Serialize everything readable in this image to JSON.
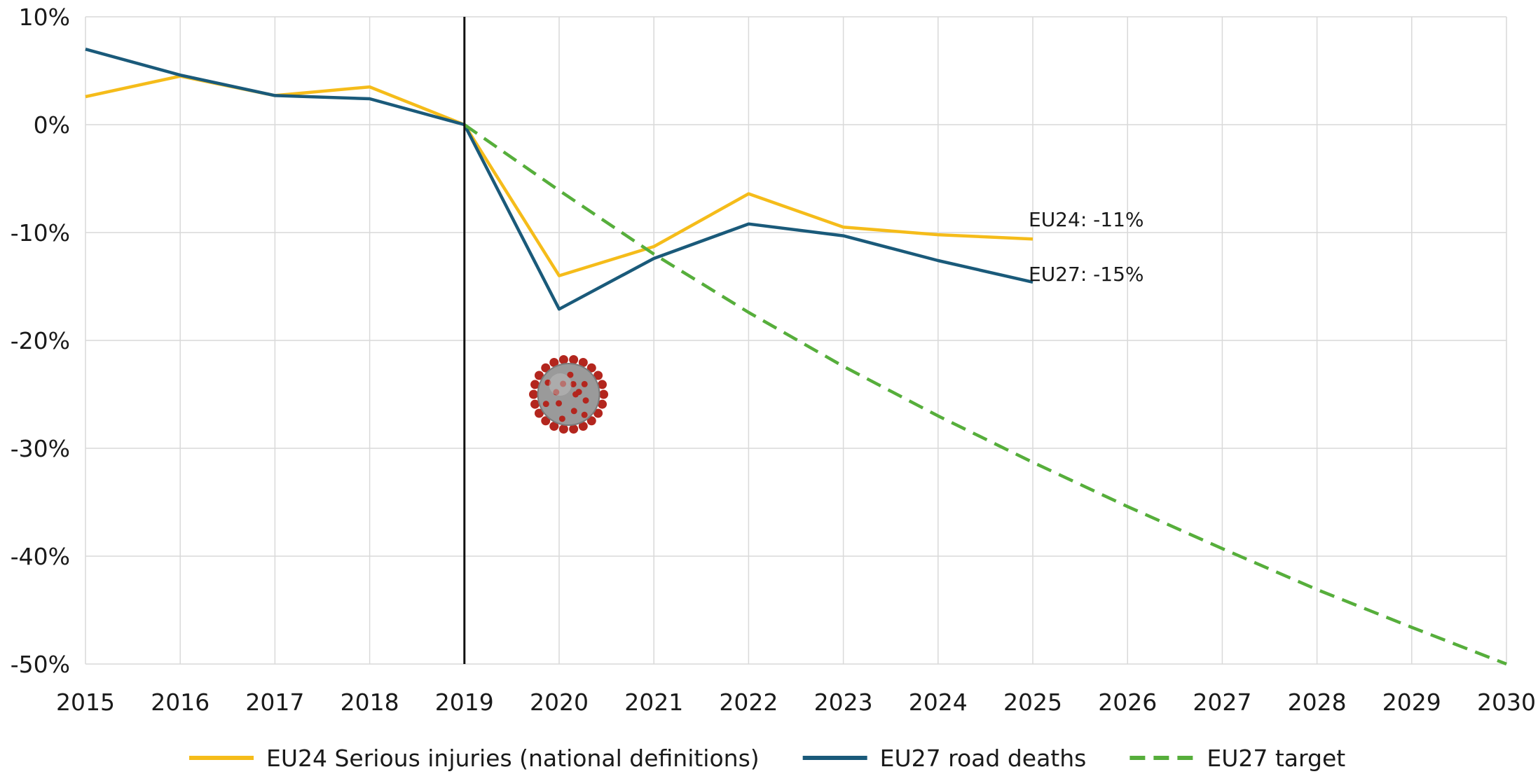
{
  "chart_data": {
    "type": "line",
    "title": "",
    "xlabel": "",
    "ylabel": "",
    "x": [
      2015,
      2016,
      2017,
      2018,
      2019,
      2020,
      2021,
      2022,
      2023,
      2024,
      2025,
      2026,
      2027,
      2028,
      2029,
      2030
    ],
    "xlim": [
      2015,
      2030
    ],
    "ylim": [
      -50,
      10
    ],
    "y_ticks": [
      10,
      0,
      -10,
      -20,
      -30,
      -40,
      -50
    ],
    "y_tick_labels": [
      "10%",
      "0%",
      "-10%",
      "-20%",
      "-30%",
      "-40%",
      "-50%"
    ],
    "grid": true,
    "legend_position": "bottom",
    "vertical_marker_x": 2019,
    "series": [
      {
        "name": "EU24 Serious injuries (national definitions)",
        "color": "#f5bc1a",
        "style": "solid",
        "points": [
          [
            2015,
            2.6
          ],
          [
            2016,
            4.5
          ],
          [
            2017,
            2.7
          ],
          [
            2018,
            3.5
          ],
          [
            2019,
            0.0
          ],
          [
            2020,
            -14.0
          ],
          [
            2021,
            -11.3
          ],
          [
            2022,
            -6.4
          ],
          [
            2023,
            -9.5
          ],
          [
            2024,
            -10.2
          ],
          [
            2025,
            -10.6
          ]
        ]
      },
      {
        "name": "EU27 road deaths",
        "color": "#1a5a7a",
        "style": "solid",
        "points": [
          [
            2015,
            7.0
          ],
          [
            2016,
            4.6
          ],
          [
            2017,
            2.7
          ],
          [
            2018,
            2.4
          ],
          [
            2019,
            0.0
          ],
          [
            2020,
            -17.1
          ],
          [
            2021,
            -12.4
          ],
          [
            2022,
            -9.2
          ],
          [
            2023,
            -10.3
          ],
          [
            2024,
            -12.6
          ],
          [
            2025,
            -14.6
          ]
        ]
      },
      {
        "name": "EU27 target",
        "color": "#56ae3b",
        "style": "dashed",
        "points": [
          [
            2019,
            0.0
          ],
          [
            2020,
            -6.1
          ],
          [
            2021,
            -12.0
          ],
          [
            2022,
            -17.4
          ],
          [
            2023,
            -22.4
          ],
          [
            2024,
            -27.0
          ],
          [
            2025,
            -31.3
          ],
          [
            2026,
            -35.4
          ],
          [
            2027,
            -39.3
          ],
          [
            2028,
            -43.1
          ],
          [
            2029,
            -46.6
          ],
          [
            2030,
            -50.0
          ]
        ]
      }
    ],
    "annotations": [
      {
        "text": "EU24: -11%",
        "x": 2025,
        "y": -10.6
      },
      {
        "text": "EU27: -15%",
        "x": 2025,
        "y": -14.6
      }
    ],
    "icons": [
      {
        "name": "coronavirus-icon",
        "x": 2020.1,
        "y": -25
      }
    ]
  }
}
